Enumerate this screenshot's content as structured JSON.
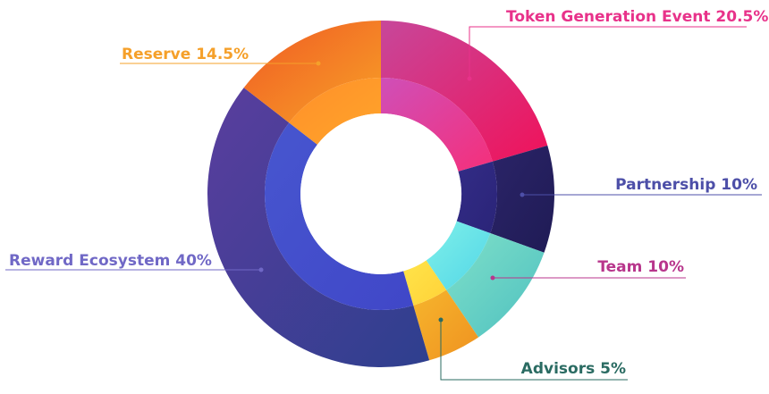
{
  "chart_data": {
    "type": "pie",
    "variant": "donut",
    "categories": [
      "Token Generation Event",
      "Partnership",
      "Team",
      "Advisors",
      "Reward Ecosystem",
      "Reserve"
    ],
    "values": [
      20.5,
      10,
      10,
      5,
      40,
      14.5
    ],
    "unit": "%",
    "labels": [
      {
        "name": "Token Generation Event",
        "value": "20.5%",
        "color": "#e8328a"
      },
      {
        "name": "Partnership",
        "value": "10%",
        "color": "#4d4fa8"
      },
      {
        "name": "Team",
        "value": "10%",
        "color": "#b8368c"
      },
      {
        "name": "Advisors",
        "value": "5%",
        "color": "#2a6b62"
      },
      {
        "name": "Reward Ecosystem",
        "value": "40%",
        "color": "#7068c6"
      },
      {
        "name": "Reserve",
        "value": "14.5%",
        "color": "#f5a02a"
      }
    ],
    "segment_colors": [
      {
        "outer": [
          "#c7479a",
          "#f0125a"
        ],
        "inner": [
          "#cf4fb8",
          "#f52f7a"
        ]
      },
      {
        "outer": [
          "#2b2468",
          "#1f1b55"
        ],
        "inner": [
          "#332c86",
          "#2a2478"
        ]
      },
      {
        "outer": [
          "#7fe0c9",
          "#4ec0c0"
        ],
        "inner": [
          "#7ff0ea",
          "#52d6e6"
        ]
      },
      {
        "outer": [
          "#f6b52d",
          "#ef9220"
        ],
        "inner": [
          "#ffe44a",
          "#ffd238"
        ]
      },
      {
        "outer": [
          "#5a3e9e",
          "#2e3f8e"
        ],
        "inner": [
          "#4756cf",
          "#4047c8"
        ]
      },
      {
        "outer": [
          "#f05a24",
          "#f7a127"
        ],
        "inner": [
          "#ff8f2a",
          "#ffa52a"
        ]
      }
    ]
  }
}
